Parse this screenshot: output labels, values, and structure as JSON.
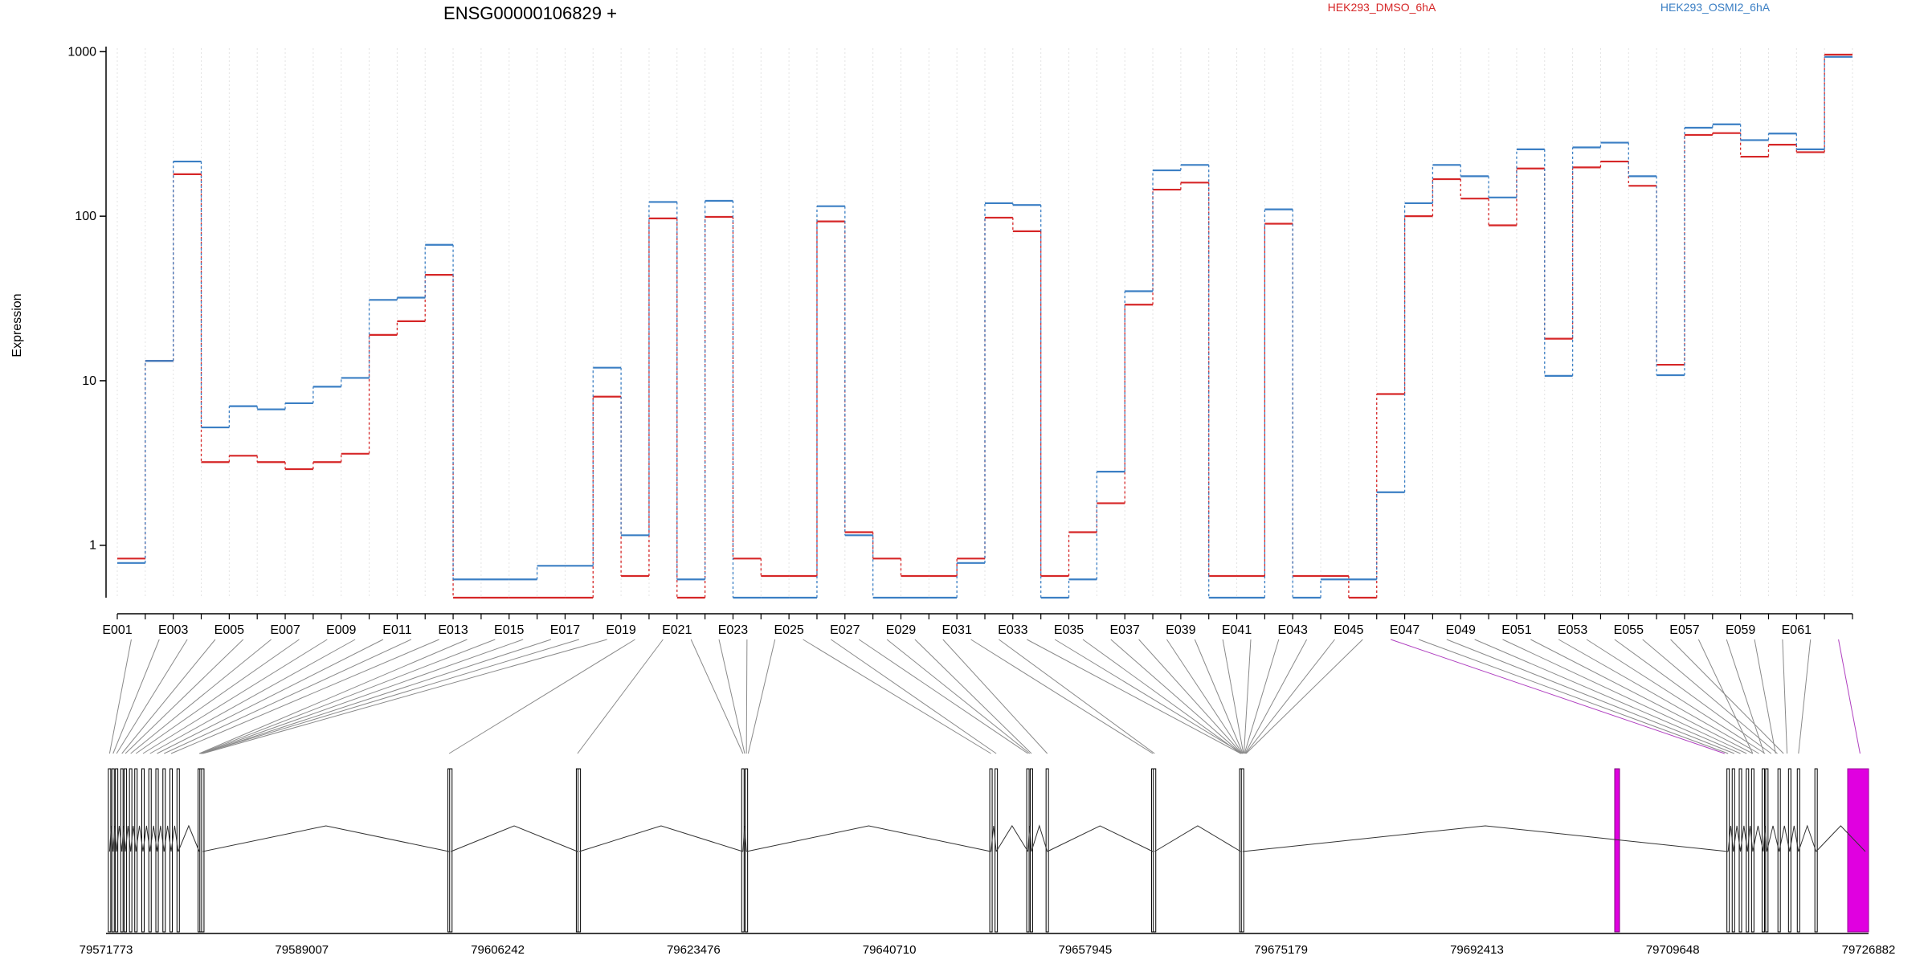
{
  "chart_data": {
    "type": "line",
    "title": "ENSG00000106829 +",
    "ylabel": "Expression",
    "xlabel": "",
    "y_scale": "log",
    "ylim": [
      0.48,
      1050
    ],
    "y_ticks": [
      1,
      10,
      100,
      1000
    ],
    "y_tick_labels": [
      "1",
      "10",
      "100",
      "1000"
    ],
    "grid": "vertical dotted lines at each exon bin",
    "legend_position": "top-right",
    "categories": [
      "E001",
      "E002",
      "E003",
      "E004",
      "E005",
      "E006",
      "E007",
      "E008",
      "E009",
      "E010",
      "E011",
      "E012",
      "E013",
      "E014",
      "E015",
      "E016",
      "E017",
      "E018",
      "E019",
      "E020",
      "E021",
      "E022",
      "E023",
      "E024",
      "E025",
      "E026",
      "E027",
      "E028",
      "E029",
      "E030",
      "E031",
      "E032",
      "E033",
      "E034",
      "E035",
      "E036",
      "E037",
      "E038",
      "E039",
      "E040",
      "E041",
      "E042",
      "E043",
      "E044",
      "E045",
      "E046",
      "E047",
      "E048",
      "E049",
      "E050",
      "E051",
      "E052",
      "E053",
      "E054",
      "E055",
      "E056",
      "E057",
      "E058",
      "E059",
      "E060",
      "E061",
      "E062"
    ],
    "x_tick_labels": [
      "E001",
      "E003",
      "E005",
      "E007",
      "E009",
      "E011",
      "E013",
      "E015",
      "E017",
      "E019",
      "E021",
      "E023",
      "E025",
      "E027",
      "E029",
      "E031",
      "E033",
      "E035",
      "E037",
      "E039",
      "E041",
      "E043",
      "E045",
      "E047",
      "E049",
      "E051",
      "E053",
      "E055",
      "E057",
      "E059",
      "E061"
    ],
    "series": [
      {
        "name": "HEK293_DMSO_6hA",
        "color": "#d62728",
        "values": [
          0.83,
          13.2,
          180,
          3.2,
          3.5,
          3.2,
          2.9,
          3.2,
          3.6,
          19,
          23,
          44,
          0.48,
          0.48,
          0.48,
          0.48,
          0.48,
          8,
          0.65,
          97,
          0.48,
          99,
          0.83,
          0.65,
          0.65,
          93,
          1.2,
          0.83,
          0.65,
          0.65,
          0.83,
          98,
          81,
          0.65,
          1.2,
          1.8,
          29,
          145,
          160,
          0.65,
          0.65,
          90,
          0.65,
          0.65,
          0.48,
          8.3,
          100,
          168,
          128,
          88,
          195,
          18,
          198,
          215,
          153,
          12.5,
          312,
          320,
          230,
          272,
          245,
          960
        ]
      },
      {
        "name": "HEK293_OSMI2_6hA",
        "color": "#3b7fc4",
        "values": [
          0.78,
          13.2,
          215,
          5.2,
          7,
          6.7,
          7.3,
          9.2,
          10.4,
          31,
          32,
          67,
          0.62,
          0.62,
          0.62,
          0.75,
          0.75,
          12,
          1.15,
          122,
          0.62,
          124,
          0.48,
          0.48,
          0.48,
          115,
          1.15,
          0.48,
          0.48,
          0.48,
          0.78,
          120,
          117,
          0.48,
          0.62,
          2.8,
          35,
          190,
          205,
          0.48,
          0.48,
          110,
          0.48,
          0.62,
          0.62,
          2.1,
          120,
          205,
          175,
          130,
          255,
          10.7,
          262,
          280,
          175,
          10.8,
          345,
          362,
          290,
          318,
          255,
          930
        ]
      }
    ],
    "gene_model": {
      "coordinate_labels": [
        "79571773",
        "79589007",
        "79606242",
        "79623476",
        "79640710",
        "79657945",
        "79675179",
        "79692413",
        "79709648",
        "79726882"
      ],
      "highlighted_exons": [
        "E046",
        "E062"
      ],
      "highlight_color": "#e000e0"
    }
  },
  "legend": [
    {
      "label": "HEK293_DMSO_6hA",
      "color": "#d62728"
    },
    {
      "label": "HEK293_OSMI2_6hA",
      "color": "#3b7fc4"
    }
  ]
}
